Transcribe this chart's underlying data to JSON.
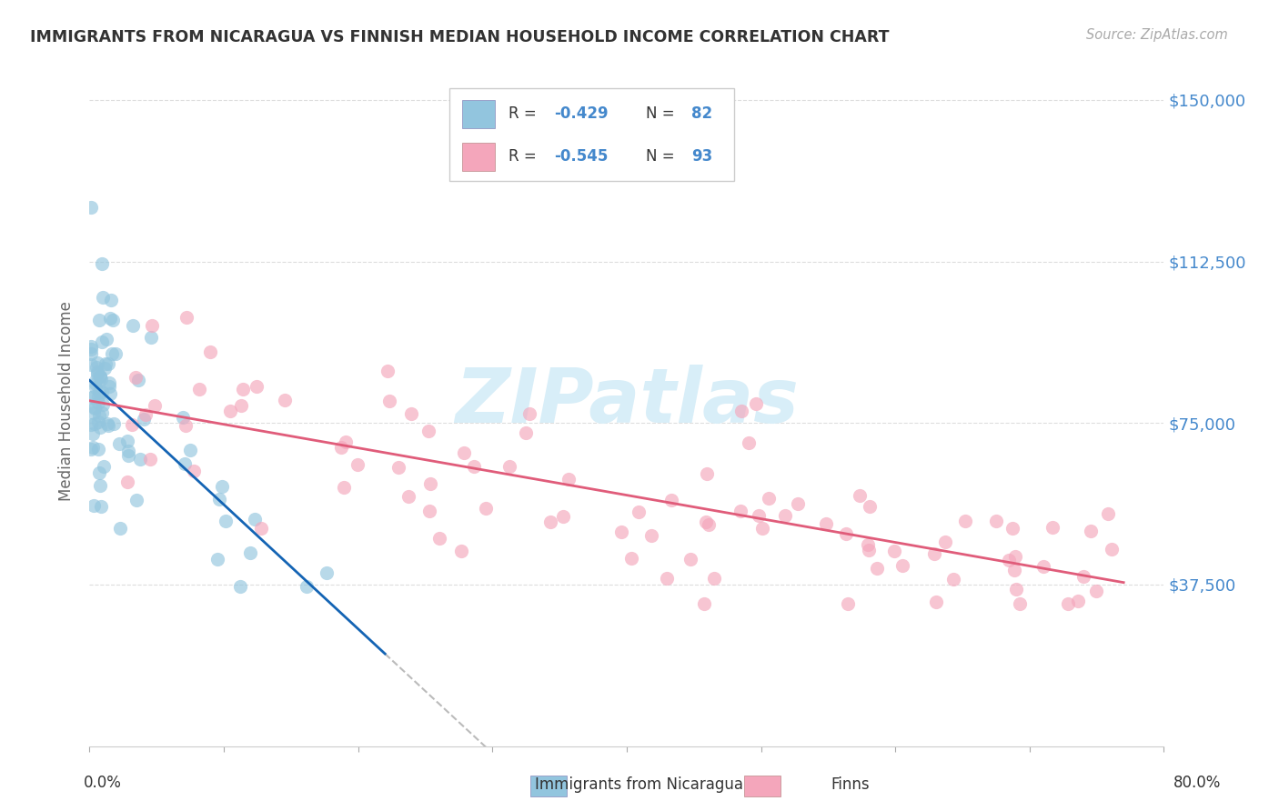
{
  "title": "IMMIGRANTS FROM NICARAGUA VS FINNISH MEDIAN HOUSEHOLD INCOME CORRELATION CHART",
  "source": "Source: ZipAtlas.com",
  "ylabel": "Median Household Income",
  "ytick_labels": [
    "$37,500",
    "$75,000",
    "$112,500",
    "$150,000"
  ],
  "ytick_values": [
    37500,
    75000,
    112500,
    150000
  ],
  "ymin": 0,
  "ymax": 160000,
  "xmin": 0.0,
  "xmax": 0.8,
  "color_blue": "#92c5de",
  "color_pink": "#f4a6bb",
  "color_blue_line": "#1464b4",
  "color_pink_line": "#e05c7a",
  "color_dash": "#bbbbbb",
  "legend_box_color": "#f5f5f5",
  "legend_box_edge": "#cccccc",
  "watermark_color": "#d8eef8",
  "title_color": "#333333",
  "source_color": "#aaaaaa",
  "ylabel_color": "#666666",
  "ytick_color": "#4488cc",
  "xtick_color": "#333333",
  "grid_color": "#dddddd",
  "bottom_label_color": "#333333"
}
